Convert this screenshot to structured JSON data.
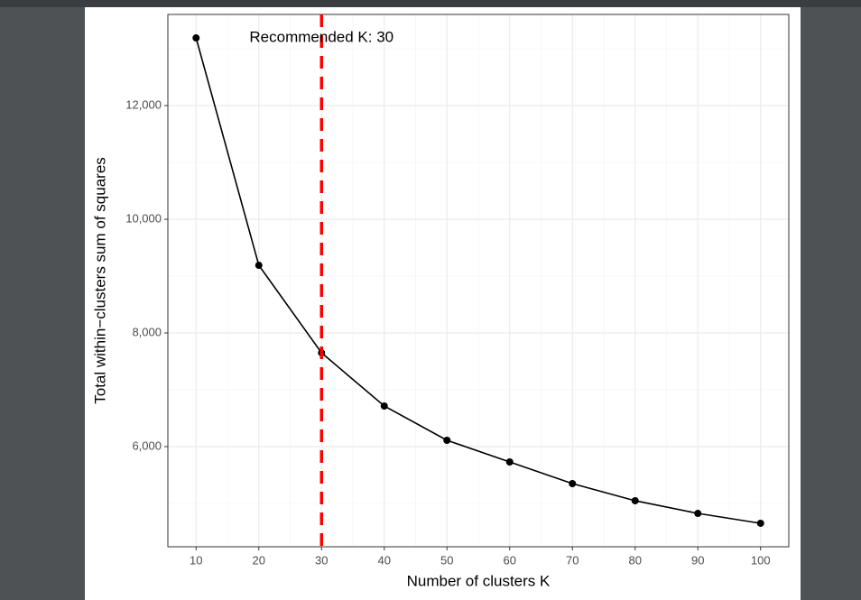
{
  "chart_data": {
    "type": "line",
    "x_label": "Number of clusters K",
    "y_label": "Total within−clusters sum of squares",
    "annotation": "Recommended K:  30",
    "x": [
      10,
      20,
      30,
      40,
      50,
      60,
      70,
      80,
      90,
      100
    ],
    "series": [
      {
        "color": "#000000",
        "values": [
          13190,
          9190,
          7650,
          6714,
          6111,
          5730,
          5349,
          5048,
          4825,
          4651
        ]
      }
    ],
    "vline": {
      "value": 30,
      "color": "#ff0000",
      "dashed": true
    },
    "xlim": [
      5.5,
      104.5
    ],
    "xticks": [
      10,
      20,
      30,
      40,
      50,
      60,
      70,
      80,
      90,
      100
    ],
    "xminor": [
      15,
      25,
      35,
      45,
      55,
      65,
      75,
      85,
      95
    ],
    "ylim": [
      4238,
      13603
    ],
    "yticks": [
      {
        "value": 6000,
        "label": "6,000"
      },
      {
        "value": 8000,
        "label": "8,000"
      },
      {
        "value": 10000,
        "label": "10,000"
      },
      {
        "value": 12000,
        "label": "12,000"
      }
    ],
    "yminor": [
      5000,
      7000,
      9000,
      11000,
      13000
    ],
    "grid": true
  }
}
